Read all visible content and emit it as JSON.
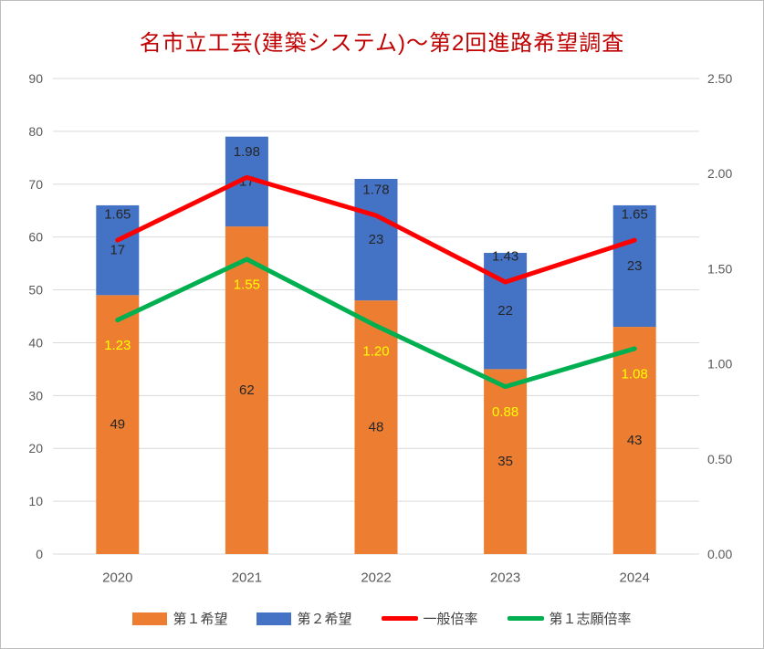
{
  "title": "名市立工芸(建築システム)～第2回進路希望調査",
  "title_color": "#C00000",
  "chart_data": {
    "type": "combo-stacked-bar-line",
    "title": "名市立工芸(建築システム)～第2回進路希望調査",
    "categories": [
      "2020",
      "2021",
      "2022",
      "2023",
      "2024"
    ],
    "bar_series": [
      {
        "name": "第１希望",
        "color": "#ED7D31",
        "values": [
          49,
          62,
          48,
          35,
          43
        ],
        "labels": [
          "49",
          "62",
          "48",
          "35",
          "43"
        ],
        "label_color": "#262626"
      },
      {
        "name": "第２希望",
        "color": "#4472C4",
        "values": [
          17,
          17,
          23,
          22,
          23
        ],
        "labels": [
          "17",
          "17",
          "23",
          "22",
          "23"
        ],
        "label_color": "#262626"
      }
    ],
    "line_series": [
      {
        "name": "一般倍率",
        "color": "#FF0000",
        "axis": "right",
        "values": [
          1.65,
          1.98,
          1.78,
          1.43,
          1.65
        ],
        "labels": [
          "1.65",
          "1.98",
          "1.78",
          "1.43",
          "1.65"
        ],
        "label_color": "#262626",
        "label_position": "above"
      },
      {
        "name": "第１志願倍率",
        "color": "#00B050",
        "axis": "right",
        "values": [
          1.23,
          1.55,
          1.2,
          0.88,
          1.08
        ],
        "labels": [
          "1.23",
          "1.55",
          "1.20",
          "0.88",
          "1.08"
        ],
        "label_color": "#FFFF00",
        "label_position": "below"
      }
    ],
    "left_axis": {
      "min": 0,
      "max": 90,
      "step": 10,
      "ticks": [
        "0",
        "10",
        "20",
        "30",
        "40",
        "50",
        "60",
        "70",
        "80",
        "90"
      ]
    },
    "right_axis": {
      "min": 0,
      "max": 2.5,
      "step": 0.5,
      "ticks": [
        "0.00",
        "0.50",
        "1.00",
        "1.50",
        "2.00",
        "2.50"
      ]
    },
    "gridlines": true,
    "grid_color": "#D9D9D9",
    "axis_text_color": "#595959",
    "legend_position": "bottom"
  }
}
